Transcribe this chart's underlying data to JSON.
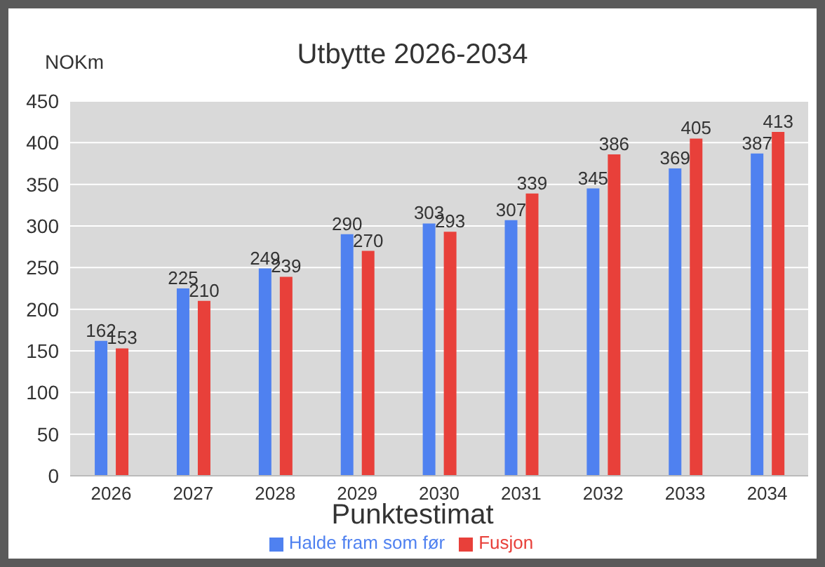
{
  "chart_data": {
    "type": "bar",
    "title": "Utbytte 2026-2034",
    "ylabel": "NOKm",
    "xlabel": "Punktestimat",
    "categories": [
      "2026",
      "2027",
      "2028",
      "2029",
      "2030",
      "2031",
      "2032",
      "2033",
      "2034"
    ],
    "series": [
      {
        "name": "Halde fram som før",
        "color": "#4f81f0",
        "values": [
          162,
          225,
          249,
          290,
          303,
          307,
          345,
          369,
          387
        ]
      },
      {
        "name": "Fusjon",
        "color": "#e8403a",
        "values": [
          153,
          210,
          239,
          270,
          293,
          339,
          386,
          405,
          413
        ]
      }
    ],
    "ylim": [
      0,
      450
    ],
    "yticks": [
      0,
      50,
      100,
      150,
      200,
      250,
      300,
      350,
      400,
      450
    ],
    "grid": "y",
    "legend": "bottom",
    "data_labels": true
  }
}
